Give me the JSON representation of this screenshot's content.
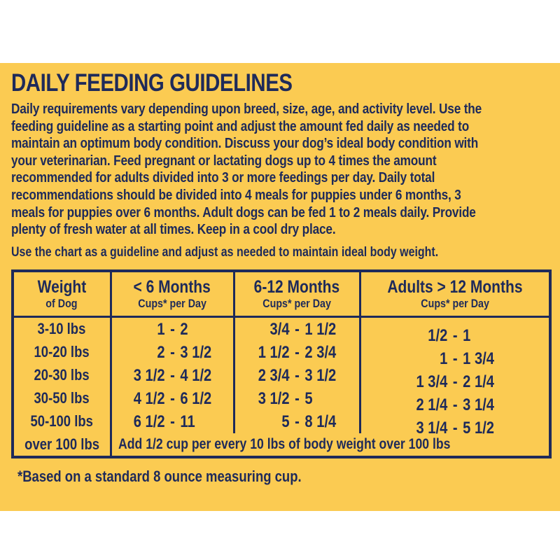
{
  "colors": {
    "panel_yellow": "#fbcb52",
    "navy_text": "#1e2a5a",
    "page_white": "#ffffff"
  },
  "title": "DAILY FEEDING GUIDELINES",
  "intro_text": "Daily requirements vary depending upon breed, size, age, and activity level. Use the\nfeeding guideline as a starting point and adjust the amount fed daily as needed to\nmaintain an optimum body condition. Discuss your dog’s ideal body condition with\nyour veterinarian. Feed pregnant or lactating dogs up to 4 times the amount\nrecommended for adults divided into 3 or more feedings per day. Daily total\nrecommendations should be divided into 4 meals for puppies under 6 months, 3\nmeals for puppies over 6 months. Adult dogs can be fed 1 to 2 meals daily. Provide\nplenty of fresh water at all times. Keep in a cool dry place.",
  "chart_note": "Use the chart as a guideline and adjust as needed to maintain ideal body weight.",
  "table": {
    "headers": {
      "weight": {
        "main": "Weight",
        "sub": "of Dog"
      },
      "under_6": {
        "main": "< 6 Months",
        "sub": "Cups* per Day"
      },
      "m6_12": {
        "main": "6-12 Months",
        "sub": "Cups* per Day"
      },
      "adults": {
        "main": "Adults > 12 Months",
        "sub": "Cups* per Day"
      }
    },
    "rows": [
      {
        "weight": "3-10 lbs",
        "under_6": "1 - 2",
        "m6_12": "3/4 - 1 1/2",
        "adults": "1/2 - 1"
      },
      {
        "weight": "10-20 lbs",
        "under_6": "2 - 3 1/2",
        "m6_12": "1 1/2 - 2 3/4",
        "adults": "1 - 1 3/4"
      },
      {
        "weight": "20-30 lbs",
        "under_6": "3 1/2 - 4 1/2",
        "m6_12": "2 3/4 - 3 1/2",
        "adults": "1 3/4 - 2 1/4"
      },
      {
        "weight": "30-50 lbs",
        "under_6": "4 1/2 - 6 1/2",
        "m6_12": "3 1/2 - 5",
        "adults": "2 1/4 - 3 1/4"
      },
      {
        "weight": "50-100 lbs",
        "under_6": "6 1/2 - 11",
        "m6_12": "5 - 8 1/4",
        "adults": "3 1/4 - 5 1/2"
      }
    ],
    "over_100_row": {
      "weight": "over 100 lbs",
      "note": "Add 1/2 cup per every 10 lbs of body weight over 100 lbs"
    }
  },
  "footnote": "*Based on a standard 8 ounce measuring cup."
}
